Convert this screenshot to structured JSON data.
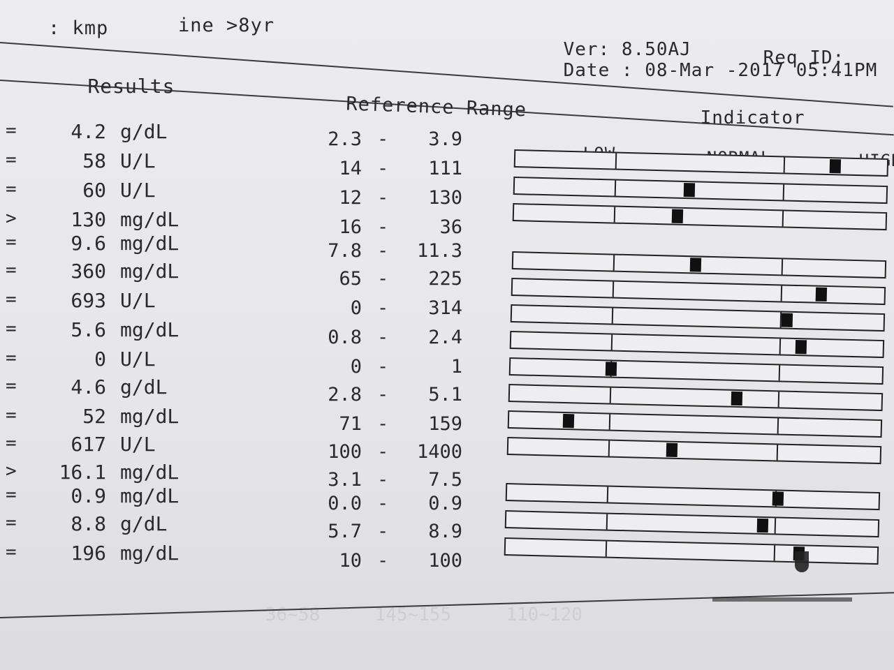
{
  "header": {
    "top_left": ": kmp",
    "top_mid": "ine >8yr",
    "version": "Ver: 8.50AJ",
    "req_id": "Req ID:",
    "date": "Date : 08-Mar -2017 05:41PM"
  },
  "columns": {
    "results": "Results",
    "reference": "Reference Range",
    "indicator": "Indicator"
  },
  "indicator_labels": {
    "low": "LOW",
    "normal": "NORMAL",
    "high": "HIGH"
  },
  "rows": [
    {
      "op": "=",
      "value": "4.2",
      "unit": "g/dL",
      "low": "2.3",
      "high": "3.9",
      "marker": "high",
      "bar": true
    },
    {
      "op": "=",
      "value": "58",
      "unit": "U/L",
      "low": "14",
      "high": "111",
      "marker": "normal",
      "bar": true
    },
    {
      "op": "=",
      "value": "60",
      "unit": "U/L",
      "low": "12",
      "high": "130",
      "marker": "normal",
      "bar": true
    },
    {
      "op": ">",
      "value": "130",
      "unit": "mg/dL",
      "low": "16",
      "high": "36",
      "marker": null,
      "bar": false
    },
    {
      "op": "=",
      "value": "9.6",
      "unit": "mg/dL",
      "low": "7.8",
      "high": "11.3",
      "marker": "normal",
      "bar": true
    },
    {
      "op": "=",
      "value": "360",
      "unit": "mg/dL",
      "low": "65",
      "high": "225",
      "marker": "high",
      "bar": true
    },
    {
      "op": "=",
      "value": "693",
      "unit": "U/L",
      "low": "0",
      "high": "314",
      "marker": "high",
      "bar": true
    },
    {
      "op": "=",
      "value": "5.6",
      "unit": "mg/dL",
      "low": "0.8",
      "high": "2.4",
      "marker": "high",
      "bar": true
    },
    {
      "op": "=",
      "value": "0",
      "unit": "U/L",
      "low": "0",
      "high": "1",
      "marker": "low",
      "bar": true
    },
    {
      "op": "=",
      "value": "4.6",
      "unit": "g/dL",
      "low": "2.8",
      "high": "5.1",
      "marker": "normal",
      "bar": true
    },
    {
      "op": "=",
      "value": "52",
      "unit": "mg/dL",
      "low": "71",
      "high": "159",
      "marker": "low",
      "bar": true
    },
    {
      "op": "=",
      "value": "617",
      "unit": "U/L",
      "low": "100",
      "high": "1400",
      "marker": "normal",
      "bar": true
    },
    {
      "op": ">",
      "value": "16.1",
      "unit": "mg/dL",
      "low": "3.1",
      "high": "7.5",
      "marker": null,
      "bar": false
    },
    {
      "op": "=",
      "value": "0.9",
      "unit": "mg/dL",
      "low": "0.0",
      "high": "0.9",
      "marker": "high",
      "bar": true
    },
    {
      "op": "=",
      "value": "8.8",
      "unit": "g/dL",
      "low": "5.7",
      "high": "8.9",
      "marker": "normal",
      "bar": true
    },
    {
      "op": "=",
      "value": "196",
      "unit": "mg/dL",
      "low": "10",
      "high": "100",
      "marker": "high",
      "bar": true
    }
  ]
}
